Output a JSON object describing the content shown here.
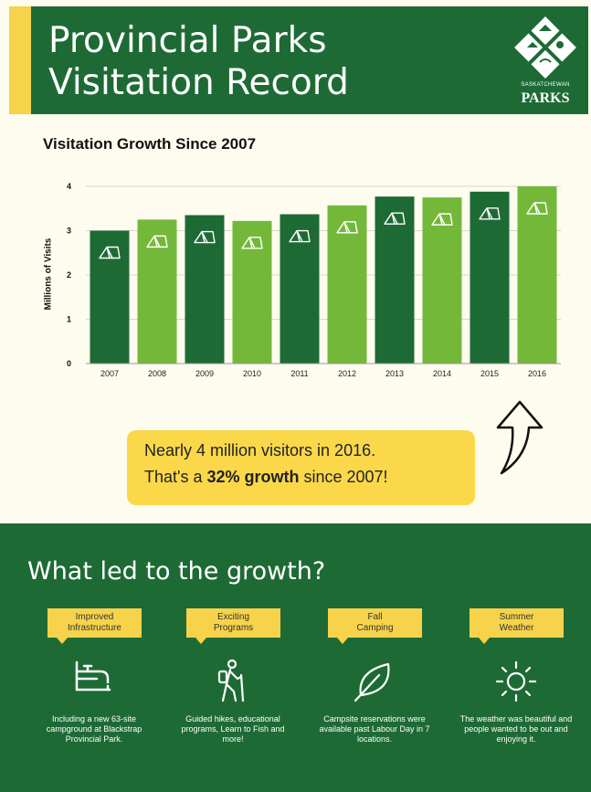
{
  "header": {
    "title_line1": "Provincial Parks",
    "title_line2": "Visitation Record",
    "logo_small": "SASKATCHEWAN",
    "logo_big": "PARKS"
  },
  "chart": {
    "heading": "Visitation Growth Since 2007"
  },
  "chart_data": {
    "type": "bar",
    "title": "Visitation Growth Since 2007",
    "xlabel": "",
    "ylabel": "Millions of Visits",
    "categories": [
      "2007",
      "2008",
      "2009",
      "2010",
      "2011",
      "2012",
      "2013",
      "2014",
      "2015",
      "2016"
    ],
    "values": [
      3.0,
      3.25,
      3.35,
      3.22,
      3.37,
      3.57,
      3.77,
      3.75,
      3.88,
      4.0
    ],
    "ylim": [
      0,
      4
    ],
    "yticks": [
      0,
      1,
      2,
      3,
      4
    ],
    "grid": true,
    "legend": "none",
    "bar_colors": [
      "#1e6a35",
      "#74b83a",
      "#1e6a35",
      "#74b83a",
      "#1e6a35",
      "#74b83a",
      "#1e6a35",
      "#74b83a",
      "#1e6a35",
      "#74b83a"
    ],
    "bar_icon": "tent-icon"
  },
  "callout": {
    "line1": "Nearly 4 million visitors in 2016.",
    "line2_pre": "That's a ",
    "line2_bold": "32% growth",
    "line2_post": " since 2007!"
  },
  "growth": {
    "title": "What led to the growth?",
    "reasons": [
      {
        "tag_l1": "Improved",
        "tag_l2": "Infrastructure",
        "icon": "faucet-icon",
        "desc": "Including a new 63-site campground at Blackstrap Provincial Park."
      },
      {
        "tag_l1": "Exciting",
        "tag_l2": "Programs",
        "icon": "hiker-icon",
        "desc": "Guided hikes, educational programs, Learn to Fish and more!"
      },
      {
        "tag_l1": "Fall",
        "tag_l2": "Camping",
        "icon": "leaf-icon",
        "desc": "Campsite reservations were available past Labour Day in 7 locations."
      },
      {
        "tag_l1": "Summer",
        "tag_l2": "Weather",
        "icon": "sun-icon",
        "desc": "The weather was beautiful and people wanted to be out and enjoying it."
      }
    ]
  },
  "colors": {
    "dark_green": "#1e6a35",
    "light_green": "#74b83a",
    "yellow": "#f6d34a",
    "cream": "#fdfcee"
  }
}
